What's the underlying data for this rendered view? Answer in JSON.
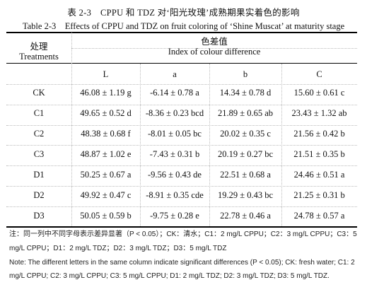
{
  "title_cn": "表 2-3　CPPU 和 TDZ 对‘阳光玫瑰’成熟期果实着色的影响",
  "title_en": "Table 2-3　Effects of CPPU and TDZ on fruit coloring of ‘Shine Muscat’ at maturity stage",
  "header": {
    "treat_cn": "处理",
    "treat_en": "Treatments",
    "index_cn": "色差值",
    "index_en": "Index of colour difference",
    "cols": [
      "L",
      "a",
      "b",
      "C"
    ]
  },
  "rows": [
    {
      "name": "CK",
      "vals": [
        "46.08 ± 1.19 g",
        "-6.14 ± 0.78 a",
        "14.34 ± 0.78 d",
        "15.60 ± 0.61 c"
      ]
    },
    {
      "name": "C1",
      "vals": [
        "49.65 ± 0.52 d",
        "-8.36 ± 0.23 bcd",
        "21.89 ± 0.65 ab",
        "23.43 ± 1.32 ab"
      ]
    },
    {
      "name": "C2",
      "vals": [
        "48.38 ± 0.68 f",
        "-8.01 ± 0.05 bc",
        "20.02 ± 0.35 c",
        "21.56 ± 0.42 b"
      ]
    },
    {
      "name": "C3",
      "vals": [
        "48.87 ± 1.02 e",
        "-7.43 ± 0.31 b",
        "20.19 ± 0.27 bc",
        "21.51 ± 0.35 b"
      ]
    },
    {
      "name": "D1",
      "vals": [
        "50.25 ± 0.67 a",
        "-9.56 ± 0.43 de",
        "22.51 ± 0.68 a",
        "24.46 ± 0.51 a"
      ]
    },
    {
      "name": "D2",
      "vals": [
        "49.92 ± 0.47 c",
        "-8.91 ± 0.35 cde",
        "19.29 ± 0.43 bc",
        "21.25 ± 0.31 b"
      ]
    },
    {
      "name": "D3",
      "vals": [
        "50.05 ± 0.59 b",
        "-9.75 ± 0.28 e",
        "22.78 ± 0.46 a",
        "24.78 ± 0.57 a"
      ]
    }
  ],
  "notes": {
    "cn_line1": "注：同一列中不同字母表示差异显著（P < 0.05）；CK：清水；C1：2 mg/L CPPU；C2：3 mg/L CPPU；C3：5",
    "cn_line2": "mg/L CPPU；D1：2 mg/L TDZ；D2：3 mg/L TDZ；D3：5 mg/L TDZ",
    "en_line1": "Note: The different letters in the same column indicate significant differences (P < 0.05); CK: fresh water; C1: 2",
    "en_line2": "mg/L CPPU; C2: 3 mg/L CPPU; C3: 5 mg/L CPPU; D1: 2 mg/L TDZ; D2: 3 mg/L TDZ; D3: 5 mg/L TDZ."
  }
}
